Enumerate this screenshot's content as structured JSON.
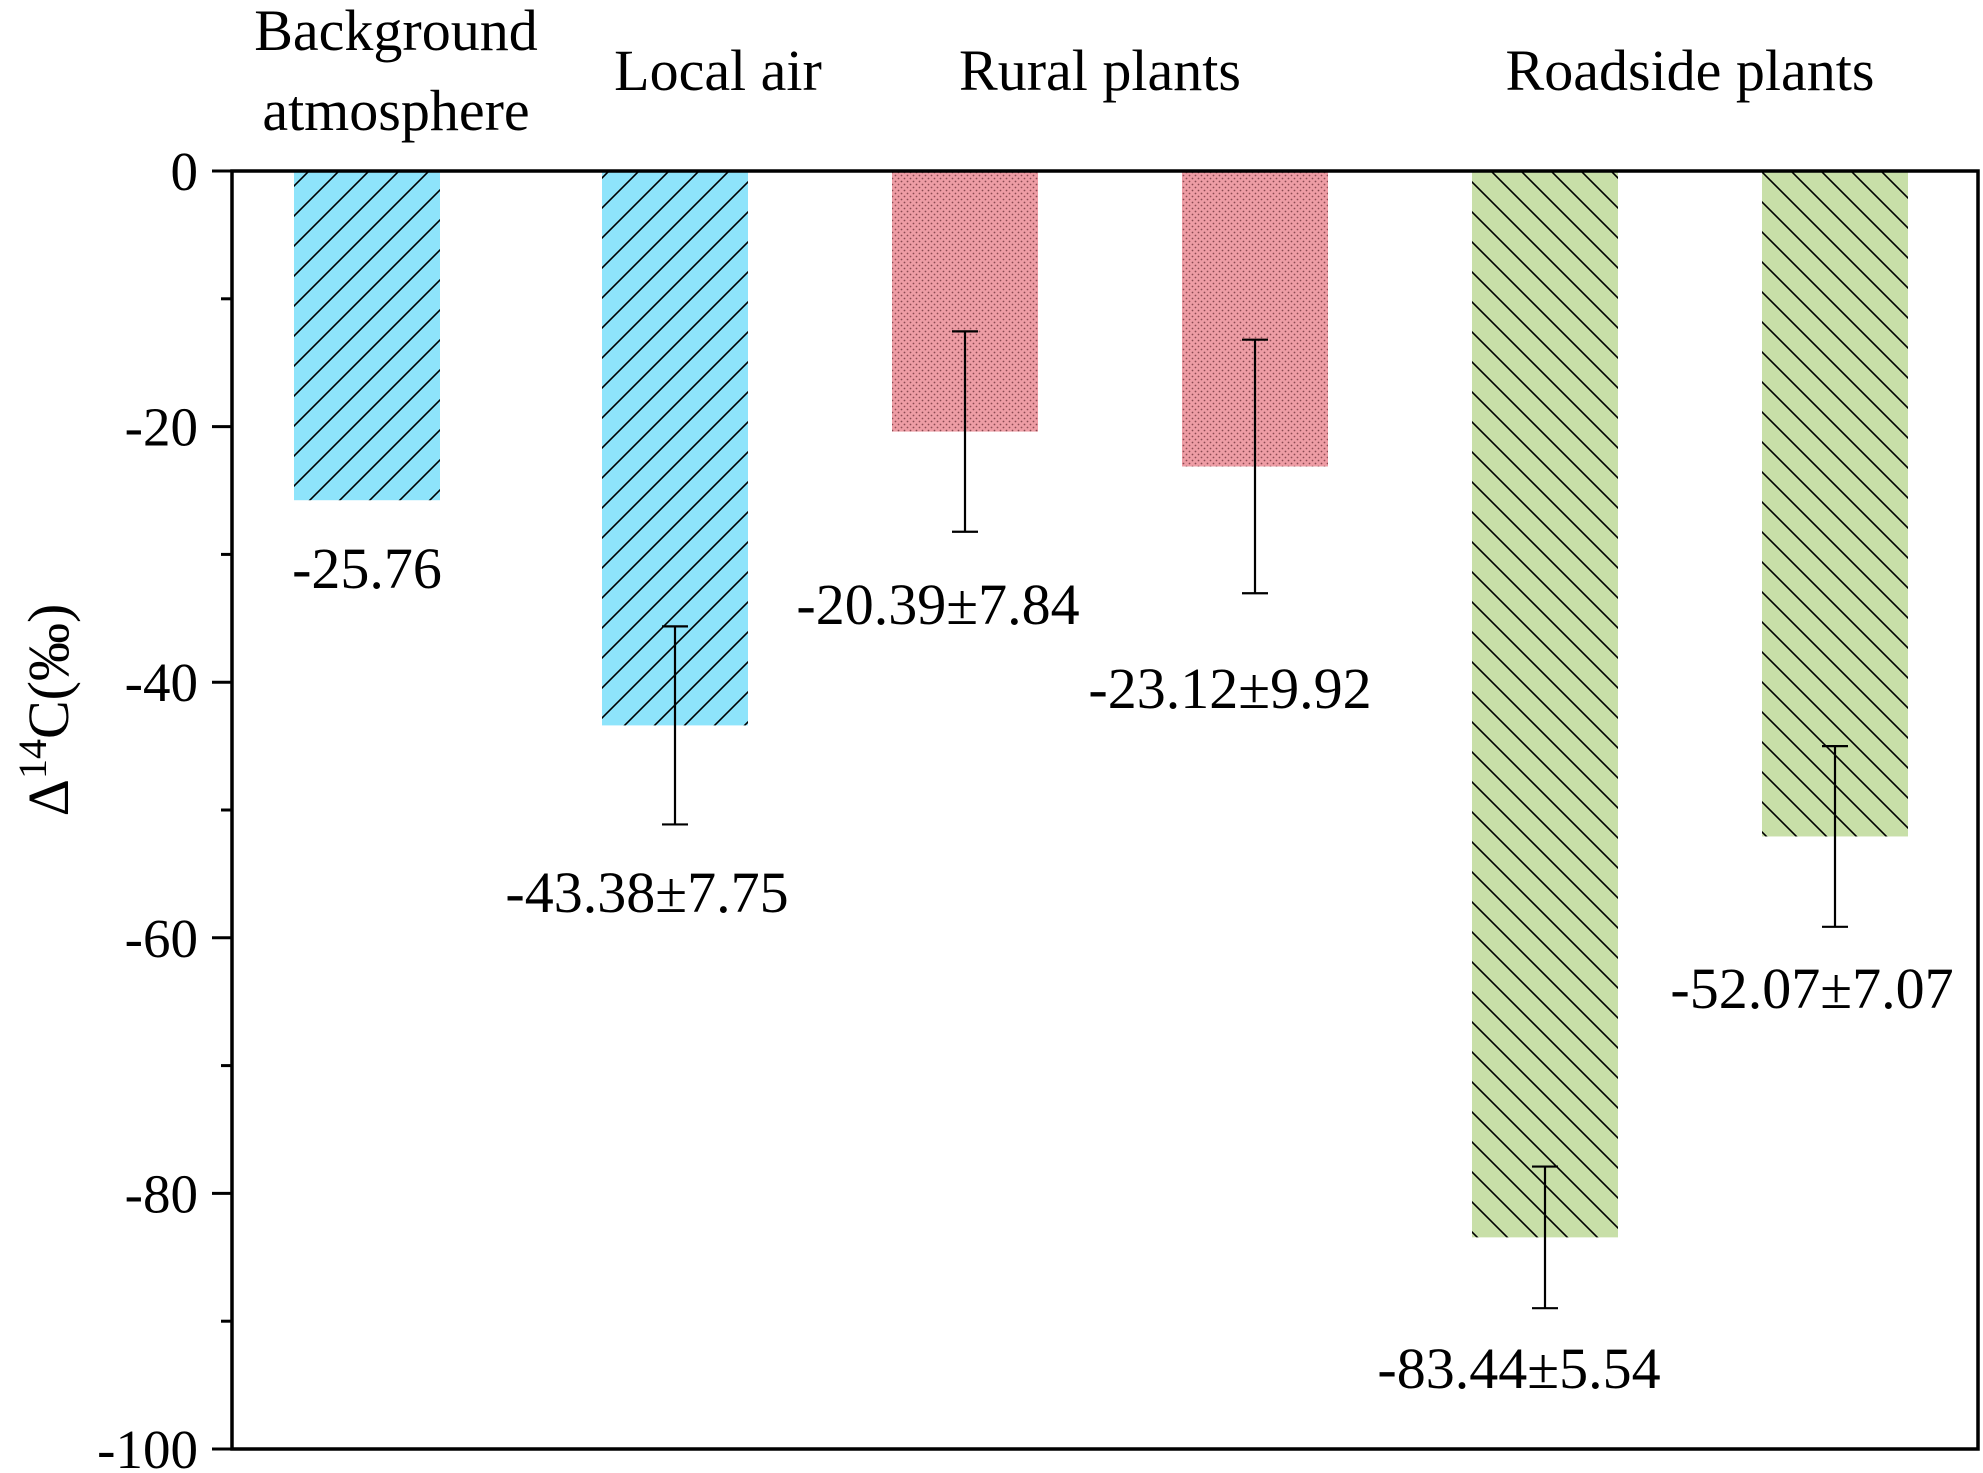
{
  "chart_data": {
    "type": "bar",
    "title": "",
    "xlabel": "",
    "ylabel": {
      "prefix": "Δ",
      "superscript": "14",
      "suffix": "C(‰)"
    },
    "ylim": [
      -100,
      0
    ],
    "yticks": [
      0,
      -20,
      -40,
      -60,
      -80,
      -100
    ],
    "grid": false,
    "legend": "none",
    "groups": [
      {
        "label_lines": [
          "Background",
          "atmosphere"
        ],
        "bars": [
          0
        ]
      },
      {
        "label_lines": [
          "Local air"
        ],
        "bars": [
          1
        ]
      },
      {
        "label_lines": [
          "Rural plants"
        ],
        "bars": [
          2,
          3
        ]
      },
      {
        "label_lines": [
          "Roadside plants"
        ],
        "bars": [
          4,
          5
        ]
      }
    ],
    "bars": [
      {
        "value": -25.76,
        "error": null,
        "label": "-25.76",
        "color": "#8ee4fb",
        "hatch": "diagonal-right"
      },
      {
        "value": -43.38,
        "error": 7.75,
        "label": "-43.38±7.75",
        "color": "#8ee4fb",
        "hatch": "diagonal-right"
      },
      {
        "value": -20.39,
        "error": 7.84,
        "label": "-20.39±7.84",
        "color": "#ee9da5",
        "hatch": "dots"
      },
      {
        "value": -23.12,
        "error": 9.92,
        "label": "-23.12±9.92",
        "color": "#ee9da5",
        "hatch": "dots"
      },
      {
        "value": -83.44,
        "error": 5.54,
        "label": "-83.44±5.54",
        "color": "#c8dfa8",
        "hatch": "diagonal-left"
      },
      {
        "value": -52.07,
        "error": 7.07,
        "label": "-52.07±7.07",
        "color": "#c8dfa8",
        "hatch": "diagonal-left"
      }
    ]
  }
}
